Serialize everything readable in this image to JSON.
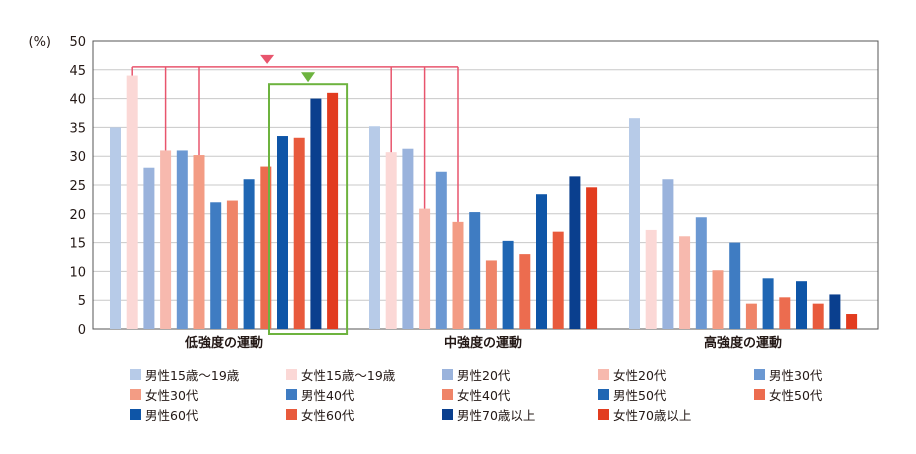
{
  "chart_data": {
    "type": "bar",
    "y_unit": "(%)",
    "ylim": [
      0,
      50
    ],
    "yticks": [
      0,
      5,
      10,
      15,
      20,
      25,
      30,
      35,
      40,
      45,
      50
    ],
    "grid": true,
    "legend_position": "bottom",
    "categories": [
      "低強度の運動",
      "中強度の運動",
      "高強度の運動"
    ],
    "series": [
      {
        "name": "男性15歳～19歳",
        "color": "#b7cbe8",
        "values": [
          35.0,
          35.2,
          36.6
        ]
      },
      {
        "name": "女性15歳～19歳",
        "color": "#fbd8d6",
        "values": [
          44.0,
          30.7,
          17.2
        ]
      },
      {
        "name": "男性20代",
        "color": "#9ab3dc",
        "values": [
          28.0,
          31.3,
          26.0
        ]
      },
      {
        "name": "女性20代",
        "color": "#f7b9ae",
        "values": [
          31.0,
          20.9,
          16.1
        ]
      },
      {
        "name": "男性30代",
        "color": "#6b98d2",
        "values": [
          31.0,
          27.3,
          19.4
        ]
      },
      {
        "name": "女性30代",
        "color": "#f39c84",
        "values": [
          30.2,
          18.6,
          10.2
        ]
      },
      {
        "name": "男性40代",
        "color": "#3f7cc2",
        "values": [
          22.0,
          20.3,
          15.0
        ]
      },
      {
        "name": "女性40代",
        "color": "#ef8468",
        "values": [
          22.3,
          11.9,
          4.4
        ]
      },
      {
        "name": "男性50代",
        "color": "#1f66b3",
        "values": [
          26.0,
          15.3,
          8.8
        ]
      },
      {
        "name": "女性50代",
        "color": "#ec6c4f",
        "values": [
          28.2,
          13.0,
          5.5
        ]
      },
      {
        "name": "男性60代",
        "color": "#0e55a7",
        "values": [
          33.5,
          23.4,
          8.3
        ]
      },
      {
        "name": "女性60代",
        "color": "#e85a3c",
        "values": [
          33.2,
          16.9,
          4.4
        ]
      },
      {
        "name": "男性70歳以上",
        "color": "#0a3f8e",
        "values": [
          40.0,
          26.5,
          6.0
        ]
      },
      {
        "name": "女性70歳以上",
        "color": "#e23c1f",
        "values": [
          41.0,
          24.6,
          2.6
        ]
      }
    ],
    "annotation_colors": {
      "bracket": "#e8556d",
      "highlight_box": "#6db33f"
    }
  }
}
